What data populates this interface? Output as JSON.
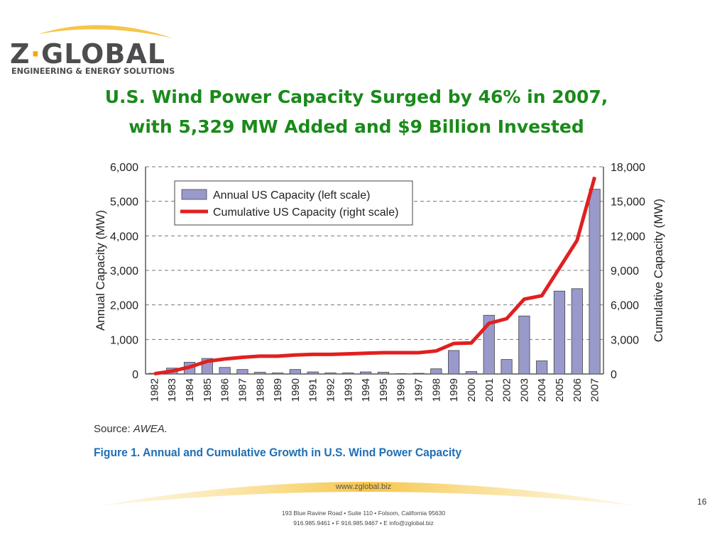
{
  "logo": {
    "brand_first": "Z",
    "brand_dot": "·",
    "brand_rest": "GLOBAL",
    "tagline": "ENGINEERING & ENERGY SOLUTIONS"
  },
  "slide": {
    "title_line1": "U.S. Wind Power Capacity Surged by 46% in 2007,",
    "title_line2": "with 5,329 MW Added and $9 Billion Invested",
    "source_label": "Source:",
    "source_value": "AWEA.",
    "caption": "Figure 1. Annual and Cumulative Growth in U.S. Wind Power Capacity",
    "page_number": "16"
  },
  "footer": {
    "website": "www.zglobal.biz",
    "address_line1": "193 Blue Ravine Road • Suite 110 • Folsom, California 95630",
    "address_line2": "916.985.9461 • F 916.985.9467 • E info@zglobal.biz"
  },
  "colors": {
    "title": "#1a8a1a",
    "bar_fill": "#9999cc",
    "line": "#e02020",
    "caption": "#1f6fb5",
    "logo_gray": "#4d4d4f",
    "logo_gold": "#f2a900"
  },
  "chart_data": {
    "type": "bar",
    "categories": [
      "1982",
      "1983",
      "1984",
      "1985",
      "1986",
      "1987",
      "1988",
      "1989",
      "1990",
      "1991",
      "1992",
      "1993",
      "1994",
      "1995",
      "1996",
      "1997",
      "1998",
      "1999",
      "2000",
      "2001",
      "2002",
      "2003",
      "2004",
      "2005",
      "2006",
      "2007"
    ],
    "series": [
      {
        "name": "Annual US Capacity (left scale)",
        "type": "bar",
        "axis": "left",
        "values": [
          20,
          170,
          340,
          450,
          190,
          130,
          50,
          30,
          130,
          60,
          30,
          30,
          60,
          50,
          10,
          20,
          150,
          680,
          70,
          1700,
          420,
          1680,
          380,
          2400,
          2470,
          5350
        ]
      },
      {
        "name": "Cumulative US Capacity (right scale)",
        "type": "line",
        "axis": "right",
        "values": [
          20,
          250,
          600,
          1100,
          1300,
          1450,
          1550,
          1550,
          1650,
          1700,
          1700,
          1750,
          1800,
          1850,
          1850,
          1850,
          2000,
          2650,
          2700,
          4400,
          4800,
          6500,
          6800,
          9200,
          11600,
          17100
        ]
      }
    ],
    "y_left": {
      "label": "Annual Capacity (MW)",
      "min": 0,
      "max": 6000,
      "ticks": [
        "0",
        "1,000",
        "2,000",
        "3,000",
        "4,000",
        "5,000",
        "6,000"
      ]
    },
    "y_right": {
      "label": "Cumulative Capacity (MW)",
      "min": 0,
      "max": 18000,
      "ticks": [
        "0",
        "3,000",
        "6,000",
        "9,000",
        "12,000",
        "15,000",
        "18,000"
      ]
    },
    "grid": "horizontal-dashed",
    "legend_position": "top-left"
  }
}
